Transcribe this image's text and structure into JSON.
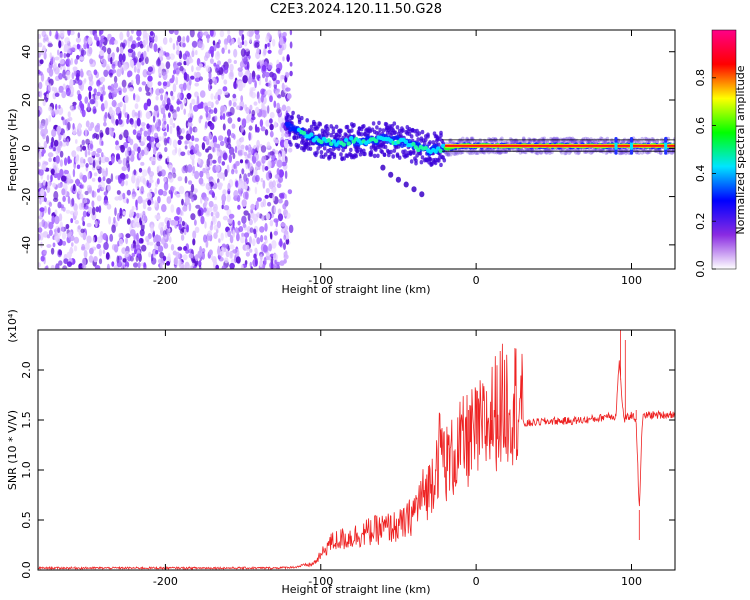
{
  "title": "C2E3.2024.120.11.50.G28",
  "chart_data": [
    {
      "type": "heatmap",
      "xlabel": "Height of straight line (km)",
      "ylabel": "Frequency (Hz)",
      "xlim": [
        -282,
        128
      ],
      "ylim": [
        -50,
        49
      ],
      "x_ticks": [
        -200,
        -100,
        0,
        100
      ],
      "x_tick_labels": [
        "-200",
        "-100",
        "0",
        "100"
      ],
      "y_ticks": [
        -40,
        -20,
        0,
        20,
        40
      ],
      "y_tick_labels": [
        "-40",
        "-20",
        "0",
        "20",
        "40"
      ],
      "noise_region_x": [
        -282,
        -122
      ],
      "signal_trace": {
        "x": [
          -122,
          -110,
          -100,
          -90,
          -80,
          -70,
          -60,
          -50,
          -40,
          -30,
          -20,
          -10,
          0,
          20,
          40,
          60,
          80,
          100,
          128
        ],
        "frequency": [
          9,
          6,
          3,
          2,
          3,
          3,
          4,
          3,
          1,
          -1,
          0,
          1,
          1,
          1,
          1,
          1,
          1,
          1,
          1
        ]
      },
      "secondary_trace": {
        "x": [
          -60,
          -55,
          -50,
          -45,
          -40,
          -35
        ],
        "frequency": [
          -8,
          -11,
          -13,
          -15,
          -17,
          -19
        ]
      },
      "colorbar": {
        "label": "Normalized spectral amplitude",
        "range": [
          0.0,
          1.0
        ],
        "ticks": [
          0.0,
          0.2,
          0.4,
          0.6,
          0.8
        ],
        "tick_labels": [
          "0.0",
          "0.2",
          "0.4",
          "0.6",
          "0.8"
        ],
        "colors": [
          "#ffffff",
          "#8a2be2",
          "#0000ff",
          "#00e5ff",
          "#00ff00",
          "#ffff00",
          "#ff0000",
          "#ff0088"
        ]
      }
    },
    {
      "type": "line",
      "xlabel": "Height of straight line (km)",
      "ylabel": "SNR (10 * V/V)",
      "scale_label": "(x10⁴)",
      "xlim": [
        -282,
        128
      ],
      "ylim": [
        0,
        2.4
      ],
      "x_ticks": [
        -200,
        -100,
        0,
        100
      ],
      "x_tick_labels": [
        "-200",
        "-100",
        "0",
        "100"
      ],
      "y_ticks": [
        0.0,
        0.5,
        1.0,
        1.5,
        2.0
      ],
      "y_tick_labels": [
        "0.0",
        "0.5",
        "1.0",
        "1.5",
        "2.0"
      ],
      "line_color": "#ee2222",
      "series": [
        {
          "x": [
            -282,
            -240,
            -200,
            -160,
            -130,
            -115,
            -105,
            -100,
            -95,
            -90,
            -80,
            -70,
            -60,
            -50,
            -45,
            -40,
            -35,
            -30,
            -25,
            -22,
            -20,
            -15,
            -10,
            -5,
            0,
            5,
            10,
            15,
            20,
            30,
            40,
            50,
            60,
            70,
            80,
            85,
            90,
            92,
            95,
            100,
            103,
            105,
            107,
            110,
            120,
            128
          ],
          "y": [
            0.02,
            0.02,
            0.02,
            0.02,
            0.02,
            0.03,
            0.05,
            0.12,
            0.22,
            0.25,
            0.28,
            0.32,
            0.35,
            0.37,
            0.4,
            0.5,
            0.62,
            0.7,
            0.95,
            1.05,
            0.9,
            0.95,
            1.05,
            1.1,
            1.15,
            1.2,
            1.3,
            1.38,
            1.42,
            1.46,
            1.48,
            1.49,
            1.49,
            1.5,
            1.52,
            1.55,
            1.53,
            2.1,
            1.5,
            1.55,
            1.5,
            0.6,
            1.52,
            1.55,
            1.55,
            1.56
          ]
        }
      ]
    }
  ]
}
